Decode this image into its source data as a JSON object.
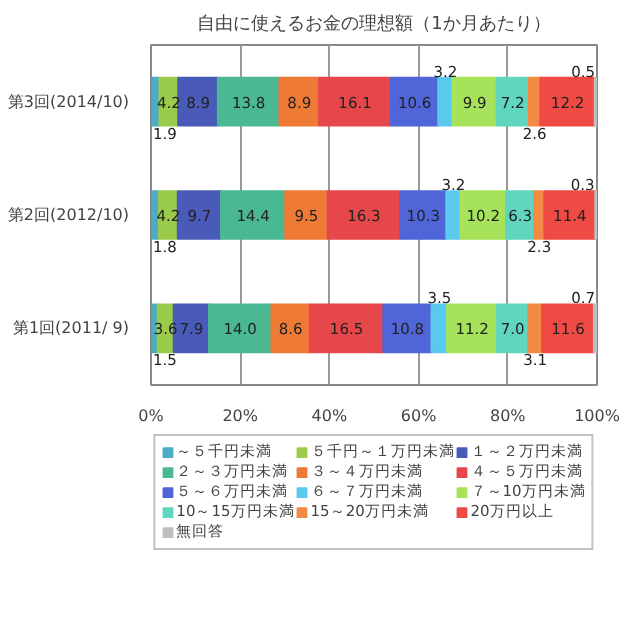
{
  "chart_data": {
    "type": "bar",
    "orientation": "horizontal",
    "stacked": true,
    "title": "自由に使えるお金の理想額（1か月あたり）",
    "categories": [
      "第3回(2014/10)",
      "第2回(2012/10)",
      "第1回(2011/ 9)"
    ],
    "series": [
      {
        "name": "～５千円未満",
        "color": "#4bacc6",
        "values": [
          1.9,
          1.8,
          1.5
        ],
        "value_labels": [
          "1.9",
          "1.8",
          "1.5"
        ]
      },
      {
        "name": "５千円～１万円未満",
        "color": "#9bcb4a",
        "values": [
          4.2,
          4.2,
          3.6
        ],
        "value_labels": [
          "4.2",
          "4.2",
          "3.6"
        ]
      },
      {
        "name": "１～２万円未満",
        "color": "#4a5ab8",
        "values": [
          8.9,
          9.7,
          7.9
        ],
        "value_labels": [
          "8.9",
          "9.7",
          "7.9"
        ]
      },
      {
        "name": "２～３万円未満",
        "color": "#4bb894",
        "values": [
          13.8,
          14.4,
          14.0
        ],
        "value_labels": [
          "13.8",
          "14.4",
          "14.0"
        ]
      },
      {
        "name": "３～４万円未満",
        "color": "#ee7a36",
        "values": [
          8.9,
          9.5,
          8.6
        ],
        "value_labels": [
          "8.9",
          "9.5",
          "8.6"
        ]
      },
      {
        "name": "４～５万円未満",
        "color": "#e6474a",
        "values": [
          16.1,
          16.3,
          16.5
        ],
        "value_labels": [
          "16.1",
          "16.3",
          "16.5"
        ]
      },
      {
        "name": "５～６万円未満",
        "color": "#5066d8",
        "values": [
          10.6,
          10.3,
          10.8
        ],
        "value_labels": [
          "10.6",
          "10.3",
          "10.8"
        ]
      },
      {
        "name": "６～７万円未満",
        "color": "#5bc8ee",
        "values": [
          3.2,
          3.2,
          3.5
        ],
        "value_labels": [
          "3.2",
          "3.2",
          "3.5"
        ]
      },
      {
        "name": "７～10万円未満",
        "color": "#a6e35a",
        "values": [
          9.9,
          10.2,
          11.2
        ],
        "value_labels": [
          "9.9",
          "10.2",
          "11.2"
        ]
      },
      {
        "name": "10～15万円未満",
        "color": "#5fd6bd",
        "values": [
          7.2,
          6.3,
          7.0
        ],
        "value_labels": [
          "7.2",
          "6.3",
          "7.0"
        ]
      },
      {
        "name": "15～20万円未満",
        "color": "#f38a45",
        "values": [
          2.6,
          2.3,
          3.1
        ],
        "value_labels": [
          "2.6",
          "2.3",
          "3.1"
        ]
      },
      {
        "name": "20万円以上",
        "color": "#f04a44",
        "values": [
          12.2,
          11.4,
          11.6
        ],
        "value_labels": [
          "12.2",
          "11.4",
          "11.6"
        ]
      },
      {
        "name": "無回答",
        "color": "#bfbfbf",
        "values": [
          0.5,
          0.3,
          0.7
        ],
        "value_labels": [
          "0.5",
          "0.3",
          "0.7"
        ]
      }
    ],
    "xlim": [
      0,
      100
    ],
    "xticks": [
      {
        "value": 0,
        "label": "0%"
      },
      {
        "value": 20,
        "label": "20%"
      },
      {
        "value": 40,
        "label": "40%"
      },
      {
        "value": 60,
        "label": "60%"
      },
      {
        "value": 80,
        "label": "80%"
      },
      {
        "value": 100,
        "label": "100%"
      }
    ],
    "grid": "x",
    "legend": "bottom",
    "data_labels": true
  }
}
